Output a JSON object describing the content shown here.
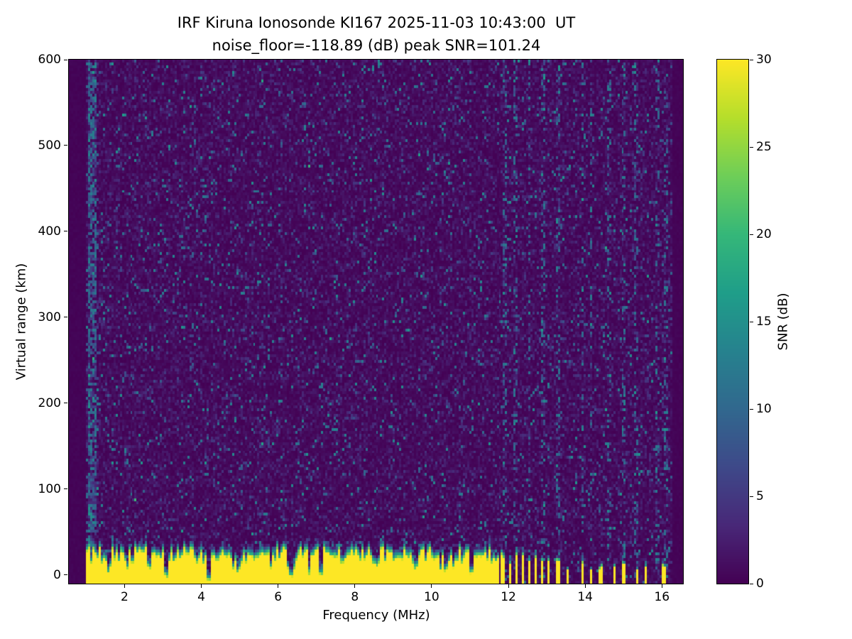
{
  "figure": {
    "background_color": "#ffffff"
  },
  "chart_data": {
    "type": "heatmap",
    "title": "IRF Kiruna Ionosonde KI167 2025-11-03 10:43:00  UT",
    "subtitle": "noise_floor=-118.89 (dB) peak SNR=101.24",
    "xlabel": "Frequency (MHz)",
    "ylabel": "Virtual range (km)",
    "colorbar_label": "SNR (dB)",
    "colormap": "viridis",
    "xlim": [
      0.55,
      16.55
    ],
    "ylim": [
      -10,
      600
    ],
    "clim": [
      0,
      30
    ],
    "x_ticks": [
      2,
      4,
      6,
      8,
      10,
      12,
      14,
      16
    ],
    "y_ticks": [
      0,
      100,
      200,
      300,
      400,
      500,
      600
    ],
    "colorbar_ticks": [
      0,
      5,
      10,
      15,
      20,
      25,
      30
    ],
    "viridis_stops": [
      "#440154",
      "#482878",
      "#3e4989",
      "#31688e",
      "#26828e",
      "#1f9e89",
      "#35b779",
      "#6ece58",
      "#b5de2b",
      "#fde725"
    ],
    "grid": {
      "nx": 290,
      "ny": 185
    },
    "seed": 167,
    "data_f_min": 0.98,
    "data_f_max": 16.3,
    "noise": {
      "mean_db": 1.1,
      "speckle_prob": 0.06,
      "speckle_max_db": 13
    },
    "ground_echo": {
      "f_start": 0.98,
      "f_end": 11.62,
      "top_km_mean": 33,
      "top_km_jitter": 9,
      "notch_prob": 0.06,
      "edge_width_km": 11
    },
    "notches": [
      {
        "f": 1.62,
        "depth": 0.5
      },
      {
        "f": 2.62,
        "depth": 0.55
      },
      {
        "f": 3.1,
        "depth": 0.35
      },
      {
        "f": 4.2,
        "depth": 0.12
      },
      {
        "f": 4.95,
        "depth": 0.5
      },
      {
        "f": 6.32,
        "depth": 0.3
      },
      {
        "f": 7.12,
        "depth": 0.4
      },
      {
        "f": 8.55,
        "depth": 0.55
      },
      {
        "f": 9.6,
        "depth": 0.5
      },
      {
        "f": 10.35,
        "depth": 0.45
      },
      {
        "f": 11.05,
        "depth": 0.5
      }
    ],
    "dense_stripes": [
      11.7,
      11.87,
      12.04,
      12.21,
      12.38,
      12.55,
      12.72,
      12.89,
      13.06
    ],
    "dense_stripe_width": 0.08,
    "sparse_stripes": [
      {
        "f": 13.3,
        "w": 0.08,
        "h": 18
      },
      {
        "f": 13.55,
        "w": 0.07,
        "h": 13
      },
      {
        "f": 13.93,
        "w": 0.08,
        "h": 16
      },
      {
        "f": 14.15,
        "w": 0.07,
        "h": 12
      },
      {
        "f": 14.4,
        "w": 0.07,
        "h": 14
      },
      {
        "f": 14.75,
        "w": 0.07,
        "h": 12
      },
      {
        "f": 15.0,
        "w": 0.08,
        "h": 15
      },
      {
        "f": 15.35,
        "w": 0.07,
        "h": 13
      },
      {
        "f": 15.6,
        "w": 0.07,
        "h": 12
      },
      {
        "f": 16.05,
        "w": 0.08,
        "h": 16
      }
    ],
    "rfi_noise_columns": [
      1.08,
      1.22,
      11.92,
      12.21,
      12.55,
      12.89,
      13.3,
      13.93,
      14.15,
      14.6,
      15.0,
      15.35,
      15.9,
      16.1
    ]
  }
}
